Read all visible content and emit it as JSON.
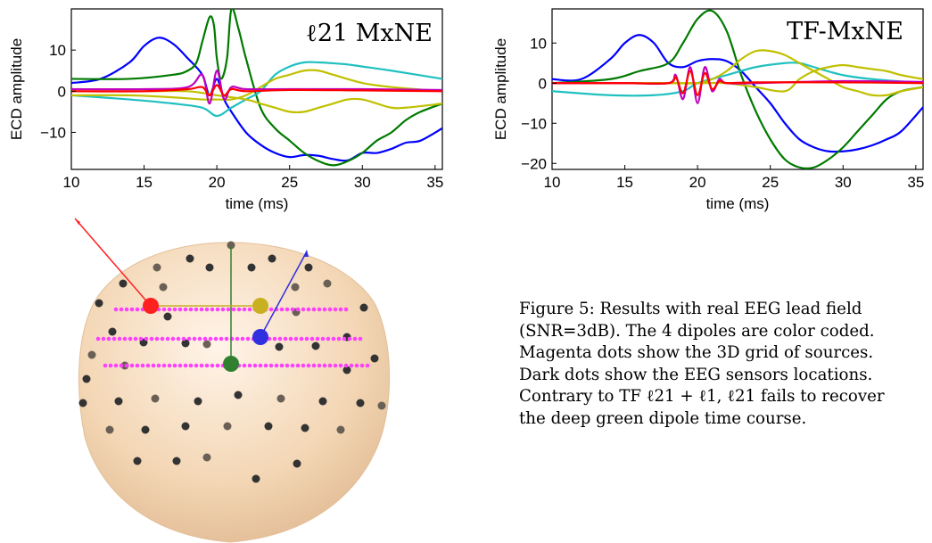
{
  "panels": [
    {
      "id": "l21",
      "title": "ℓ21 MxNE",
      "xlabel": "time (ms)",
      "ylabel": "ECD amplitude",
      "xlim": [
        10,
        35.5
      ],
      "ylim": [
        -19,
        20
      ],
      "xticks": [
        10,
        15,
        20,
        25,
        30,
        35
      ],
      "yticks": [
        -10,
        0,
        10
      ],
      "ytick_labels": [
        "−10",
        "0",
        "10"
      ],
      "series": [
        {
          "color": "#0000ff",
          "x": [
            10,
            12,
            14,
            15,
            16,
            17,
            18,
            19,
            19.5,
            20,
            20.5,
            21,
            22,
            23,
            24,
            25,
            26,
            27,
            28,
            29,
            30,
            31,
            32,
            33,
            34,
            35.5
          ],
          "y": [
            2,
            3,
            7,
            11,
            13,
            11.5,
            8,
            4,
            -1,
            3,
            -2,
            -5,
            -10,
            -13,
            -15,
            -16,
            -15.5,
            -15.7,
            -16.5,
            -16.8,
            -15,
            -15,
            -14,
            -12.5,
            -12,
            -9
          ]
        },
        {
          "color": "#007a00",
          "x": [
            10,
            14,
            17,
            18,
            18.6,
            19,
            19.5,
            19.8,
            20,
            20.3,
            20.7,
            21,
            21.5,
            22,
            23,
            24,
            25,
            26,
            27,
            28,
            29,
            30,
            31,
            32,
            33,
            34,
            35.5
          ],
          "y": [
            3,
            3,
            4,
            5,
            7,
            12,
            18,
            16,
            8,
            3,
            8,
            20,
            15,
            8,
            -4,
            -9,
            -12,
            -15,
            -17,
            -18,
            -17,
            -15,
            -12,
            -10,
            -7,
            -5,
            -3
          ]
        },
        {
          "color": "#20c0c0",
          "x": [
            10,
            14,
            17,
            19,
            20,
            21,
            22,
            23,
            24,
            25,
            26,
            27,
            28,
            29,
            30,
            32,
            35.5
          ],
          "y": [
            -1,
            -2,
            -3,
            -4,
            -6,
            -4,
            -2,
            0,
            4,
            6,
            7,
            7,
            6.8,
            6.5,
            6,
            5,
            3
          ]
        },
        {
          "color": "#c0c000",
          "x": [
            10,
            14,
            17,
            19,
            20,
            21,
            22,
            23,
            24,
            25,
            26,
            27,
            28,
            30,
            32,
            35.5
          ],
          "y": [
            -1,
            -1,
            -1.5,
            -2,
            -2,
            -2,
            -1,
            1,
            3,
            4,
            5,
            5,
            4,
            2,
            1,
            0
          ]
        },
        {
          "color": "#c0c000",
          "x": [
            10,
            15,
            18,
            20,
            22,
            23,
            24,
            25,
            26,
            27,
            28,
            29,
            30,
            31,
            32,
            33,
            35.5
          ],
          "y": [
            0,
            0,
            0,
            -1,
            -2,
            -3,
            -4,
            -5,
            -5,
            -4,
            -3,
            -2,
            -2,
            -3,
            -4,
            -4,
            -3
          ]
        },
        {
          "color": "#c000c0",
          "x": [
            10,
            15,
            18,
            19,
            19.5,
            20,
            20.5,
            21,
            22,
            25,
            30,
            35.5
          ],
          "y": [
            0.5,
            0.5,
            1,
            4,
            -3,
            5,
            -2,
            1,
            0.5,
            0.5,
            0.5,
            0.3
          ]
        },
        {
          "color": "#ff0000",
          "x": [
            10,
            15,
            18,
            19,
            19.5,
            20,
            20.5,
            21,
            22,
            25,
            30,
            35.5
          ],
          "y": [
            0,
            0,
            0.5,
            1,
            -1,
            1.5,
            -1,
            0.5,
            0,
            0.3,
            0.2,
            0
          ]
        }
      ]
    },
    {
      "id": "tf",
      "title": "TF-MxNE",
      "xlabel": "time (ms)",
      "ylabel": "ECD amplitude",
      "xlim": [
        10,
        35.5
      ],
      "ylim": [
        -21.5,
        18.5
      ],
      "xticks": [
        10,
        15,
        20,
        25,
        30,
        35
      ],
      "yticks": [
        -20,
        -10,
        0,
        10
      ],
      "ytick_labels": [
        "−20",
        "−10",
        "0",
        "10"
      ],
      "series": [
        {
          "color": "#0000ff",
          "x": [
            10,
            12,
            14,
            15,
            16,
            17,
            18,
            19,
            20,
            21,
            22,
            23,
            24,
            25,
            26,
            27,
            28,
            29,
            30,
            31,
            32,
            33,
            34,
            35.5
          ],
          "y": [
            1,
            1,
            6,
            10,
            12,
            10,
            5,
            4,
            5.5,
            6,
            5.5,
            3,
            -1,
            -5,
            -10,
            -14,
            -16,
            -17,
            -17,
            -16.5,
            -15.5,
            -14,
            -12,
            -6
          ]
        },
        {
          "color": "#007a00",
          "x": [
            10,
            14,
            16,
            18,
            19,
            20,
            21,
            22,
            23,
            24,
            25,
            26,
            27,
            28,
            29,
            30,
            31,
            32,
            33,
            34,
            35.5
          ],
          "y": [
            0,
            1,
            3,
            5,
            10,
            16,
            18,
            13,
            2,
            -7,
            -14,
            -19,
            -21,
            -21,
            -19,
            -16,
            -12,
            -8,
            -4,
            -2,
            -1
          ]
        },
        {
          "color": "#20c0c0",
          "x": [
            10,
            14,
            17,
            19,
            20,
            22,
            24,
            26,
            27,
            28,
            30,
            32,
            35.5
          ],
          "y": [
            -2,
            -3,
            -3,
            -2,
            0,
            2,
            4,
            5,
            5,
            4,
            2,
            1,
            0
          ]
        },
        {
          "color": "#c0c000",
          "x": [
            10,
            15,
            18,
            20,
            21,
            22,
            23,
            24,
            25,
            26,
            27,
            28,
            29,
            30,
            31,
            32,
            33,
            34,
            35.5
          ],
          "y": [
            0,
            0,
            0,
            0,
            1,
            3,
            6,
            8,
            8,
            7,
            5,
            3,
            1,
            -1,
            -2,
            -3,
            -3,
            -2,
            -1
          ]
        },
        {
          "color": "#c0c000",
          "x": [
            10,
            15,
            20,
            22,
            24,
            26,
            27,
            28,
            29,
            30,
            31,
            32,
            33,
            34,
            35.5
          ],
          "y": [
            0,
            0,
            0,
            0,
            -1,
            -2,
            1,
            3,
            4,
            4.5,
            4,
            3.5,
            3,
            2,
            1
          ]
        },
        {
          "color": "#c000c0",
          "x": [
            10,
            15,
            18,
            18.5,
            19,
            19.5,
            20,
            20.5,
            21,
            21.5,
            22,
            24,
            30,
            35.5
          ],
          "y": [
            0,
            0,
            0,
            2,
            -4,
            4,
            -5,
            4,
            -2,
            1,
            0,
            0,
            0.5,
            0.3
          ]
        },
        {
          "color": "#ff0000",
          "x": [
            10,
            15,
            18,
            18.5,
            19,
            19.5,
            20,
            20.5,
            21,
            21.5,
            22,
            24,
            30,
            35.5
          ],
          "y": [
            0,
            0,
            0,
            1.5,
            -2.5,
            3,
            -3,
            2.5,
            -1.5,
            0.5,
            0,
            0.2,
            0.2,
            0
          ]
        }
      ]
    }
  ],
  "head_model": {
    "sphere_color": "#f5d9b8",
    "dipole_colors": [
      "#ff2020",
      "#c8b020",
      "#3030e0",
      "#308030"
    ],
    "source_dot_color": "#ff40ff",
    "sensor_dot_color": "#333333"
  },
  "caption": {
    "lines": [
      "Figure 5: Results with real EEG lead field",
      "(SNR=3dB). The 4 dipoles are color coded.",
      "Magenta dots show the 3D grid of sources.",
      "Dark dots show the EEG sensors locations.",
      "Contrary to TF ℓ21 + ℓ1, ℓ21 fails to recover",
      "the deep green dipole time course."
    ]
  }
}
